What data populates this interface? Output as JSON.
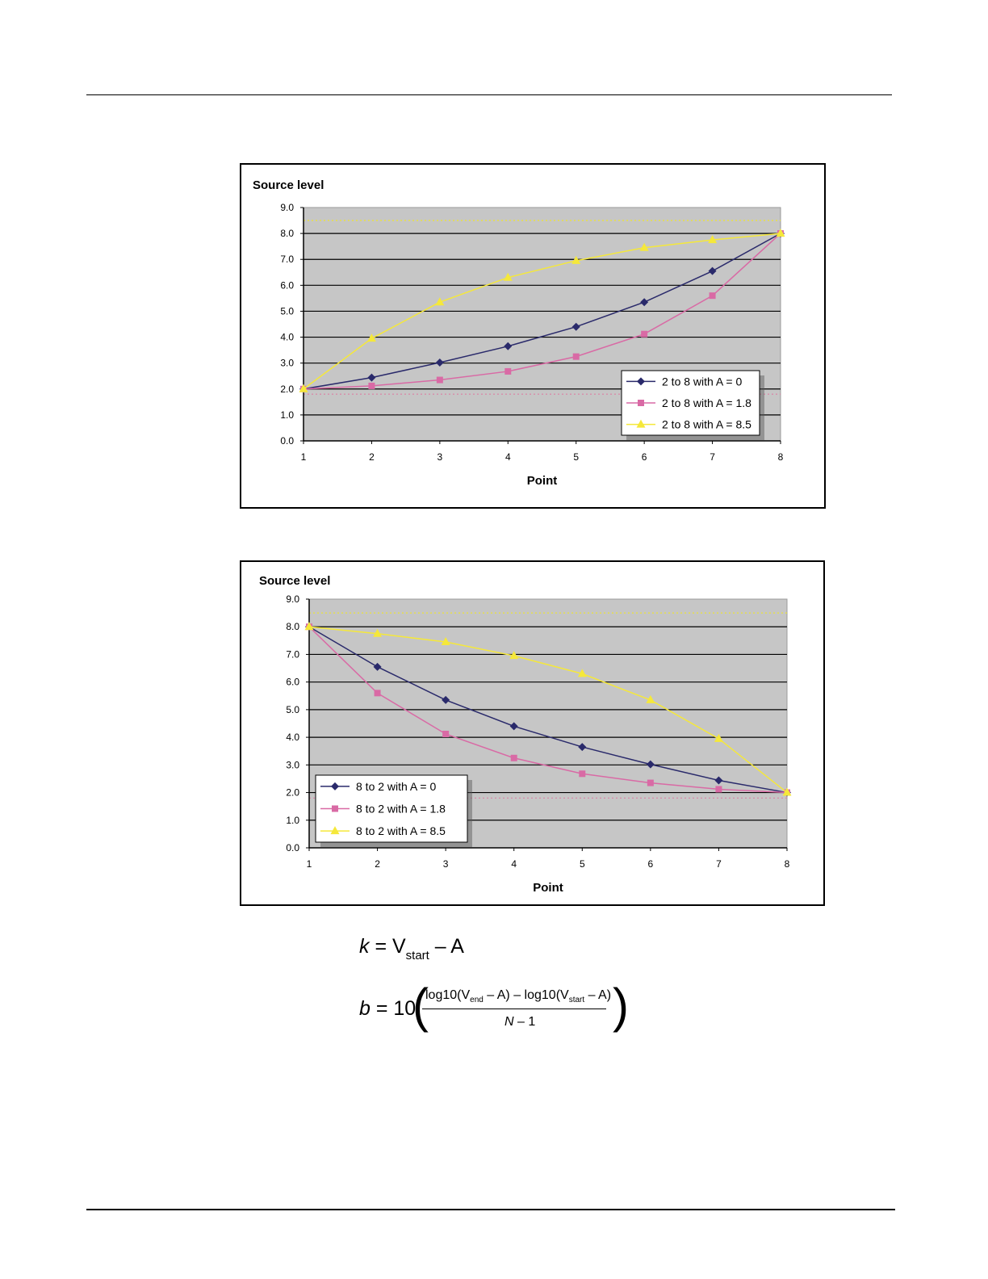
{
  "chart_data": [
    {
      "type": "line",
      "title": "Source level",
      "xlabel": "Point",
      "ylabel": "Source level",
      "categories": [
        "1",
        "2",
        "3",
        "4",
        "5",
        "6",
        "7",
        "8"
      ],
      "y_ticks": [
        "0.0",
        "1.0",
        "2.0",
        "3.0",
        "4.0",
        "5.0",
        "6.0",
        "7.0",
        "8.0",
        "9.0"
      ],
      "ylim": [
        0,
        9
      ],
      "grid": true,
      "legend_position": "bottom-right",
      "reference_lines": [
        8.5,
        1.8
      ],
      "series": [
        {
          "name": "2 to 8 with A = 0",
          "marker": "diamond",
          "color": "#2a2a6b",
          "values": [
            2.0,
            2.44,
            3.02,
            3.65,
            4.4,
            5.35,
            6.55,
            8.0
          ]
        },
        {
          "name": "2 to 8 with A = 1.8",
          "marker": "square",
          "color": "#d96aa5",
          "values": [
            2.0,
            2.12,
            2.35,
            2.68,
            3.25,
            4.12,
            5.6,
            8.0
          ]
        },
        {
          "name": "2 to 8 with A = 8.5",
          "marker": "triangle",
          "color": "#f5e83a",
          "values": [
            2.0,
            3.95,
            5.35,
            6.3,
            6.95,
            7.45,
            7.75,
            8.0
          ]
        }
      ]
    },
    {
      "type": "line",
      "title": "Source level",
      "xlabel": "Point",
      "ylabel": "Source level",
      "categories": [
        "1",
        "2",
        "3",
        "4",
        "5",
        "6",
        "7",
        "8"
      ],
      "y_ticks": [
        "0.0",
        "1.0",
        "2.0",
        "3.0",
        "4.0",
        "5.0",
        "6.0",
        "7.0",
        "8.0",
        "9.0"
      ],
      "ylim": [
        0,
        9
      ],
      "grid": true,
      "legend_position": "bottom-left",
      "reference_lines": [
        8.5,
        1.8
      ],
      "series": [
        {
          "name": "8 to 2 with A = 0",
          "marker": "diamond",
          "color": "#2a2a6b",
          "values": [
            8.0,
            6.55,
            5.35,
            4.4,
            3.65,
            3.02,
            2.44,
            2.0
          ]
        },
        {
          "name": "8 to 2 with A = 1.8",
          "marker": "square",
          "color": "#d96aa5",
          "values": [
            8.0,
            5.6,
            4.12,
            3.25,
            2.68,
            2.35,
            2.12,
            2.0
          ]
        },
        {
          "name": "8 to 2 with A = 8.5",
          "marker": "triangle",
          "color": "#f5e83a",
          "values": [
            8.0,
            7.75,
            7.45,
            6.95,
            6.3,
            5.35,
            3.95,
            2.0
          ]
        }
      ]
    }
  ],
  "formulas": {
    "k": {
      "var": "k",
      "eq": " = V",
      "sub": "start",
      "rest": " – A"
    },
    "b": {
      "var": "b",
      "eq": " = 10",
      "open_paren": "(",
      "close_paren": ")",
      "num_a": "log10(V",
      "num_sub1": "end",
      "num_b": " – A) – log10(V",
      "num_sub2": "start",
      "num_c": " – A)",
      "den_var": "N",
      "den_rest": " – 1"
    }
  }
}
